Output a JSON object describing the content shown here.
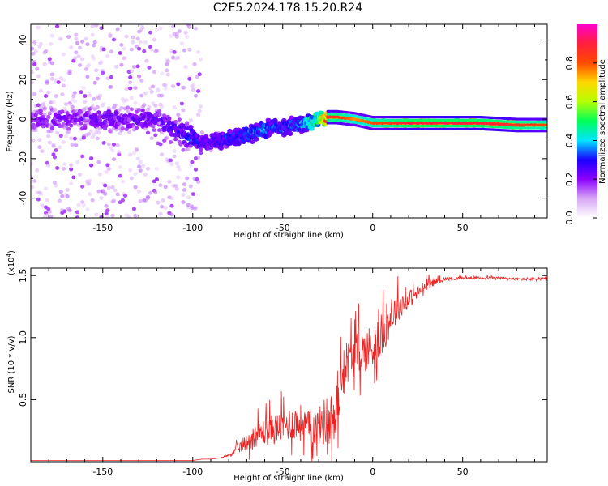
{
  "figure": {
    "title": "C2E5.2024.178.15.20.R24"
  },
  "chart_data": [
    {
      "type": "heatmap",
      "xlabel": "Height of straight line (km)",
      "ylabel": "Frequency (Hz)",
      "xlim": [
        -190,
        97
      ],
      "ylim": [
        -50,
        48
      ],
      "xticks": [
        -150,
        -100,
        -50,
        0,
        50
      ],
      "yticks": [
        -40,
        -20,
        0,
        20,
        40
      ],
      "colorbar": {
        "label": "Normalized spectral amplitude",
        "range": [
          0.0,
          1.0
        ],
        "ticks": [
          0.0,
          0.2,
          0.4,
          0.6,
          0.8
        ],
        "colormap": [
          "#ffffff",
          "#d7a6f5",
          "#8c00ff",
          "#1a00ff",
          "#00e5ff",
          "#00ff5a",
          "#b4ff00",
          "#ffd800",
          "#ff4a00",
          "#ff1f3c",
          "#ff00cc"
        ]
      },
      "ridge": {
        "x": [
          -190,
          -150,
          -120,
          -100,
          -90,
          -80,
          -70,
          -60,
          -50,
          -40,
          -30,
          -25,
          -20,
          -10,
          0,
          10,
          20,
          40,
          60,
          80,
          97
        ],
        "y": [
          0,
          0,
          0,
          -10,
          -12,
          -10,
          -8,
          -5,
          -4,
          -3,
          0,
          1,
          1,
          0,
          -2,
          -2,
          -2,
          -2,
          -2,
          -3,
          -3
        ],
        "amplitude": [
          0.2,
          0.22,
          0.22,
          0.3,
          0.25,
          0.3,
          0.33,
          0.35,
          0.3,
          0.35,
          0.55,
          0.85,
          0.85,
          0.75,
          0.8,
          0.85,
          0.9,
          0.9,
          0.9,
          0.85,
          0.8
        ]
      }
    },
    {
      "type": "line",
      "xlabel": "Height of straight line (km)",
      "ylabel": "SNR (10 * v/v)",
      "multiplier_label": "(x10",
      "multiplier_exp": "4",
      "multiplier_close": ")",
      "xlim": [
        -190,
        97
      ],
      "ylim": [
        0,
        1.56
      ],
      "xticks": [
        -150,
        -100,
        -50,
        0,
        50
      ],
      "yticks": [
        0.5,
        1.0,
        1.5
      ],
      "ytick_labels": [
        "0.5",
        "1.0",
        "1.5"
      ],
      "series": [
        {
          "color": "#ee2222",
          "x": [
            -190,
            -100,
            -95,
            -90,
            -85,
            -80,
            -75,
            -70,
            -65,
            -60,
            -55,
            -50,
            -45,
            -40,
            -35,
            -30,
            -25,
            -20,
            -18,
            -15,
            -10,
            -5,
            0,
            5,
            10,
            15,
            20,
            25,
            30,
            35,
            40,
            50,
            60,
            70,
            80,
            90,
            97
          ],
          "y": [
            0.01,
            0.01,
            0.02,
            0.02,
            0.03,
            0.05,
            0.1,
            0.15,
            0.2,
            0.23,
            0.25,
            0.27,
            0.3,
            0.3,
            0.25,
            0.27,
            0.32,
            0.3,
            0.6,
            0.78,
            0.85,
            0.88,
            0.9,
            1.0,
            1.15,
            1.25,
            1.3,
            1.35,
            1.42,
            1.45,
            1.47,
            1.48,
            1.48,
            1.48,
            1.47,
            1.47,
            1.47
          ],
          "noise": [
            0,
            0,
            0,
            0,
            0,
            0.02,
            0.08,
            0.14,
            0.18,
            0.22,
            0.25,
            0.25,
            0.28,
            0.3,
            0.28,
            0.3,
            0.45,
            0.45,
            0.35,
            0.35,
            0.35,
            0.35,
            0.4,
            0.35,
            0.3,
            0.22,
            0.15,
            0.12,
            0.08,
            0.05,
            0.03,
            0.02,
            0.02,
            0.02,
            0.02,
            0.03,
            0.04
          ]
        }
      ]
    }
  ]
}
